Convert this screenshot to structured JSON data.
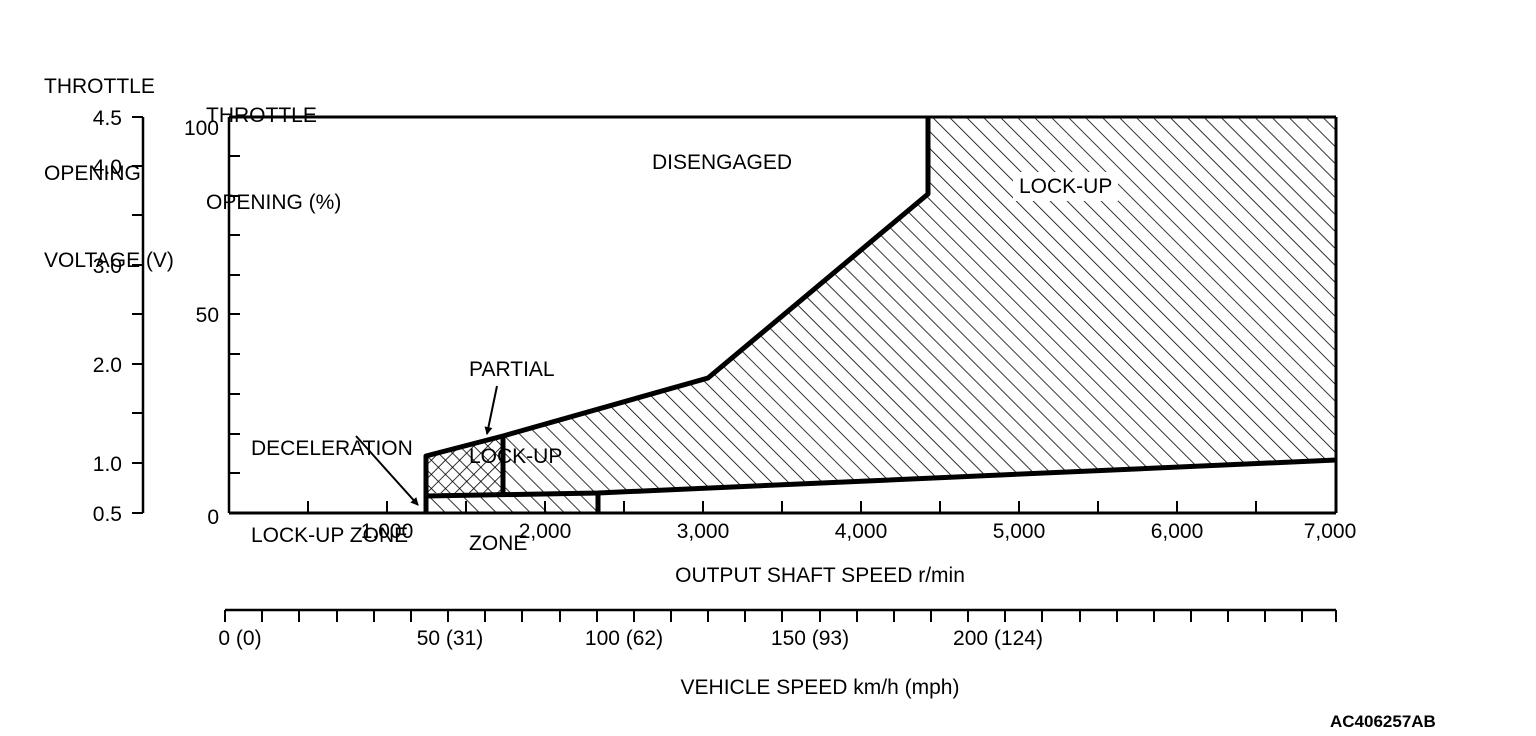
{
  "axes": {
    "voltage_title": [
      "THROTTLE",
      "OPENING",
      "VOLTAGE (V)"
    ],
    "opening_title": [
      "THROTTLE",
      "OPENING (%)"
    ],
    "voltage_ticks": [
      "4.5",
      "4.0",
      "3.0",
      "2.0",
      "1.0",
      "0.5"
    ],
    "opening_ticks": [
      "100",
      "50",
      "0"
    ],
    "shaft_speed_ticks": [
      "1,000",
      "2,000",
      "3,000",
      "4,000",
      "5,000",
      "6,000",
      "7,000"
    ],
    "shaft_speed_title": "OUTPUT SHAFT SPEED r/min",
    "vehicle_speed_ticks": [
      "0 (0)",
      "50 (31)",
      "100 (62)",
      "150 (93)",
      "200 (124)"
    ],
    "vehicle_speed_title": "VEHICLE SPEED km/h (mph)"
  },
  "regions": {
    "disengaged": "DISENGAGED",
    "lockup": "LOCK-UP",
    "partial": [
      "PARTIAL",
      "LOCK-UP",
      "ZONE"
    ],
    "deceleration": [
      "DECELERATION",
      "LOCK-UP ZONE"
    ]
  },
  "figure_id": "AC406257AB"
}
